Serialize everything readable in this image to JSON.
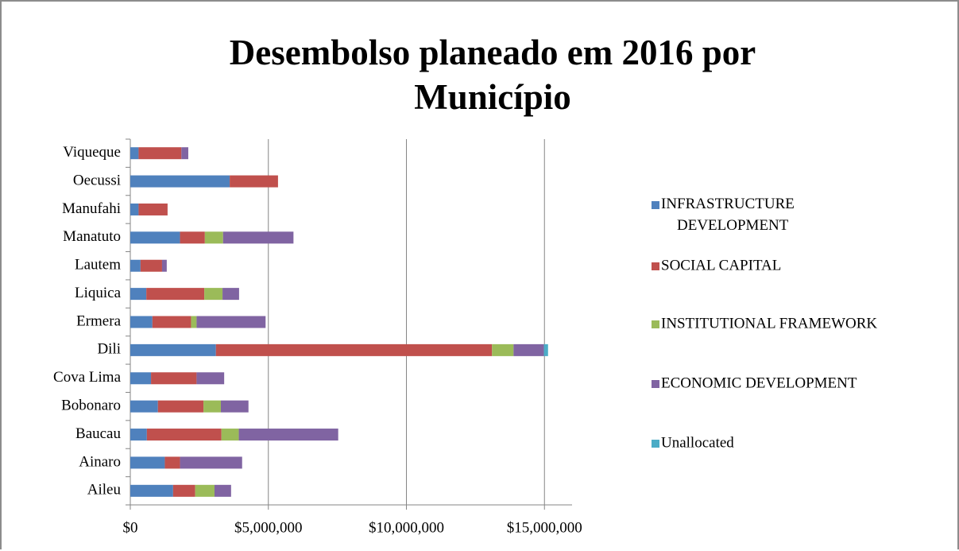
{
  "chart_data": {
    "type": "stacked_barh",
    "title": "Desembolso planeado em 2016 por Município",
    "categories": [
      "Aileu",
      "Ainaro",
      "Baucau",
      "Bobonaro",
      "Cova Lima",
      "Dili",
      "Ermera",
      "Liquica",
      "Lautem",
      "Manatuto",
      "Manufahi",
      "Oecussi",
      "Viqueque"
    ],
    "series": [
      {
        "name": "INFRASTRUCTURE DEVELOPMENT",
        "color": "#4f81bd",
        "values": [
          1550000,
          1250000,
          600000,
          1000000,
          750000,
          3100000,
          800000,
          580000,
          370000,
          1800000,
          300000,
          3600000,
          300000
        ]
      },
      {
        "name": "SOCIAL CAPITAL",
        "color": "#c0504d",
        "values": [
          800000,
          550000,
          2700000,
          1650000,
          1650000,
          10000000,
          1400000,
          2100000,
          780000,
          900000,
          1050000,
          1750000,
          1550000
        ]
      },
      {
        "name": "INSTITUTIONAL FRAMEWORK",
        "color": "#9bbb59",
        "values": [
          700000,
          0,
          630000,
          630000,
          0,
          780000,
          200000,
          660000,
          0,
          660000,
          0,
          0,
          0
        ]
      },
      {
        "name": "ECONOMIC DEVELOPMENT",
        "color": "#8064a2",
        "values": [
          600000,
          2250000,
          3600000,
          1000000,
          1000000,
          1100000,
          2500000,
          600000,
          170000,
          2550000,
          0,
          0,
          250000
        ]
      },
      {
        "name": "Unallocated",
        "color": "#4bacc6",
        "values": [
          0,
          0,
          0,
          0,
          0,
          150000,
          0,
          0,
          0,
          0,
          0,
          0,
          0
        ]
      }
    ],
    "xlim": [
      0,
      16000000
    ],
    "xticks": [
      {
        "value": 0,
        "label": "$0"
      },
      {
        "value": 5000000,
        "label": "$5,000,000"
      },
      {
        "value": 10000000,
        "label": "$10,000,000"
      },
      {
        "value": 15000000,
        "label": "$15,000,000"
      }
    ],
    "grid": true,
    "legend": "right"
  }
}
